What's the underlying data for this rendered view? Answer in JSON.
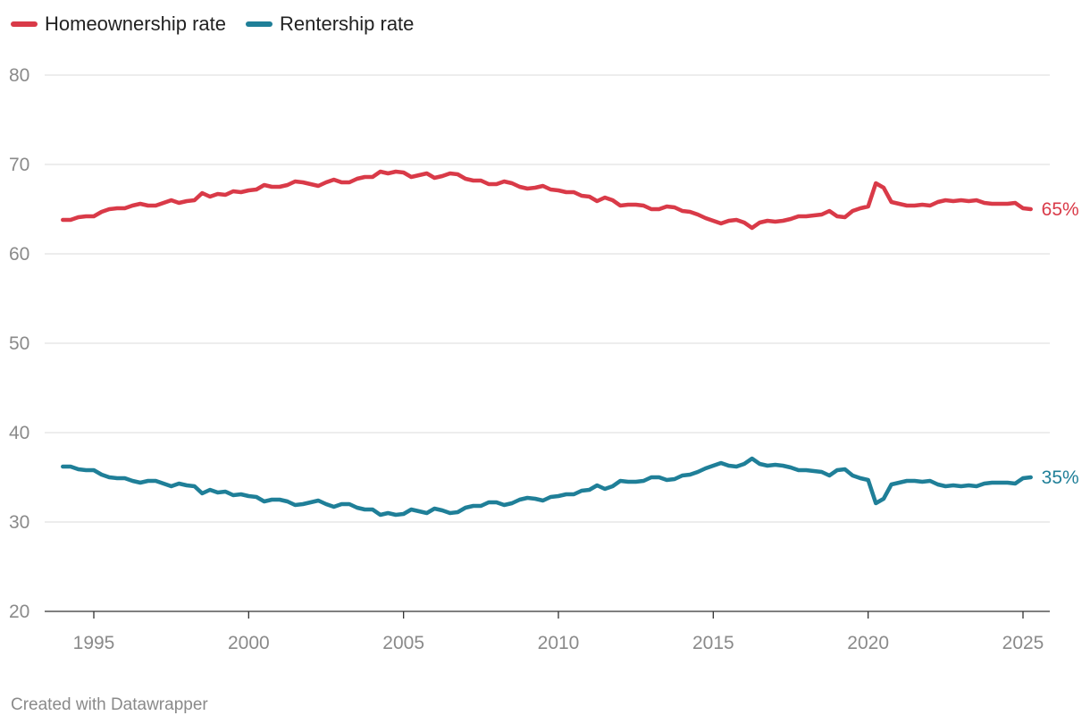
{
  "chart_data": {
    "type": "line",
    "title": "",
    "xlabel": "",
    "ylabel": "",
    "xlim": [
      1994.0,
      2025.5
    ],
    "ylim": [
      20,
      80
    ],
    "yticks": [
      20,
      30,
      40,
      50,
      60,
      70,
      80
    ],
    "xticks": [
      1995,
      2000,
      2005,
      2010,
      2015,
      2020,
      2025
    ],
    "legend_position": "top-left",
    "series": [
      {
        "name": "Homeownership rate",
        "color": "#d93a48",
        "end_label": "65%",
        "x": [
          1994.0,
          1994.25,
          1994.5,
          1994.75,
          1995.0,
          1995.25,
          1995.5,
          1995.75,
          1996.0,
          1996.25,
          1996.5,
          1996.75,
          1997.0,
          1997.25,
          1997.5,
          1997.75,
          1998.0,
          1998.25,
          1998.5,
          1998.75,
          1999.0,
          1999.25,
          1999.5,
          1999.75,
          2000.0,
          2000.25,
          2000.5,
          2000.75,
          2001.0,
          2001.25,
          2001.5,
          2001.75,
          2002.0,
          2002.25,
          2002.5,
          2002.75,
          2003.0,
          2003.25,
          2003.5,
          2003.75,
          2004.0,
          2004.25,
          2004.5,
          2004.75,
          2005.0,
          2005.25,
          2005.5,
          2005.75,
          2006.0,
          2006.25,
          2006.5,
          2006.75,
          2007.0,
          2007.25,
          2007.5,
          2007.75,
          2008.0,
          2008.25,
          2008.5,
          2008.75,
          2009.0,
          2009.25,
          2009.5,
          2009.75,
          2010.0,
          2010.25,
          2010.5,
          2010.75,
          2011.0,
          2011.25,
          2011.5,
          2011.75,
          2012.0,
          2012.25,
          2012.5,
          2012.75,
          2013.0,
          2013.25,
          2013.5,
          2013.75,
          2014.0,
          2014.25,
          2014.5,
          2014.75,
          2015.0,
          2015.25,
          2015.5,
          2015.75,
          2016.0,
          2016.25,
          2016.5,
          2016.75,
          2017.0,
          2017.25,
          2017.5,
          2017.75,
          2018.0,
          2018.25,
          2018.5,
          2018.75,
          2019.0,
          2019.25,
          2019.5,
          2019.75,
          2020.0,
          2020.25,
          2020.5,
          2020.75,
          2021.0,
          2021.25,
          2021.5,
          2021.75,
          2022.0,
          2022.25,
          2022.5,
          2022.75,
          2023.0,
          2023.25,
          2023.5,
          2023.75,
          2024.0,
          2024.25,
          2024.5,
          2024.75,
          2025.0,
          2025.25
        ],
        "values": [
          63.8,
          63.8,
          64.1,
          64.2,
          64.2,
          64.7,
          65.0,
          65.1,
          65.1,
          65.4,
          65.6,
          65.4,
          65.4,
          65.7,
          66.0,
          65.7,
          65.9,
          66.0,
          66.8,
          66.4,
          66.7,
          66.6,
          67.0,
          66.9,
          67.1,
          67.2,
          67.7,
          67.5,
          67.5,
          67.7,
          68.1,
          68.0,
          67.8,
          67.6,
          68.0,
          68.3,
          68.0,
          68.0,
          68.4,
          68.6,
          68.6,
          69.2,
          69.0,
          69.2,
          69.1,
          68.6,
          68.8,
          69.0,
          68.5,
          68.7,
          69.0,
          68.9,
          68.4,
          68.2,
          68.2,
          67.8,
          67.8,
          68.1,
          67.9,
          67.5,
          67.3,
          67.4,
          67.6,
          67.2,
          67.1,
          66.9,
          66.9,
          66.5,
          66.4,
          65.9,
          66.3,
          66.0,
          65.4,
          65.5,
          65.5,
          65.4,
          65.0,
          65.0,
          65.3,
          65.2,
          64.8,
          64.7,
          64.4,
          64.0,
          63.7,
          63.4,
          63.7,
          63.8,
          63.5,
          62.9,
          63.5,
          63.7,
          63.6,
          63.7,
          63.9,
          64.2,
          64.2,
          64.3,
          64.4,
          64.8,
          64.2,
          64.1,
          64.8,
          65.1,
          65.3,
          67.9,
          67.4,
          65.8,
          65.6,
          65.4,
          65.4,
          65.5,
          65.4,
          65.8,
          66.0,
          65.9,
          66.0,
          65.9,
          66.0,
          65.7,
          65.6,
          65.6,
          65.6,
          65.7,
          65.1,
          65.0
        ]
      },
      {
        "name": "Rentership rate",
        "color": "#1f7f98",
        "end_label": "35%",
        "x": [
          1994.0,
          1994.25,
          1994.5,
          1994.75,
          1995.0,
          1995.25,
          1995.5,
          1995.75,
          1996.0,
          1996.25,
          1996.5,
          1996.75,
          1997.0,
          1997.25,
          1997.5,
          1997.75,
          1998.0,
          1998.25,
          1998.5,
          1998.75,
          1999.0,
          1999.25,
          1999.5,
          1999.75,
          2000.0,
          2000.25,
          2000.5,
          2000.75,
          2001.0,
          2001.25,
          2001.5,
          2001.75,
          2002.0,
          2002.25,
          2002.5,
          2002.75,
          2003.0,
          2003.25,
          2003.5,
          2003.75,
          2004.0,
          2004.25,
          2004.5,
          2004.75,
          2005.0,
          2005.25,
          2005.5,
          2005.75,
          2006.0,
          2006.25,
          2006.5,
          2006.75,
          2007.0,
          2007.25,
          2007.5,
          2007.75,
          2008.0,
          2008.25,
          2008.5,
          2008.75,
          2009.0,
          2009.25,
          2009.5,
          2009.75,
          2010.0,
          2010.25,
          2010.5,
          2010.75,
          2011.0,
          2011.25,
          2011.5,
          2011.75,
          2012.0,
          2012.25,
          2012.5,
          2012.75,
          2013.0,
          2013.25,
          2013.5,
          2013.75,
          2014.0,
          2014.25,
          2014.5,
          2014.75,
          2015.0,
          2015.25,
          2015.5,
          2015.75,
          2016.0,
          2016.25,
          2016.5,
          2016.75,
          2017.0,
          2017.25,
          2017.5,
          2017.75,
          2018.0,
          2018.25,
          2018.5,
          2018.75,
          2019.0,
          2019.25,
          2019.5,
          2019.75,
          2020.0,
          2020.25,
          2020.5,
          2020.75,
          2021.0,
          2021.25,
          2021.5,
          2021.75,
          2022.0,
          2022.25,
          2022.5,
          2022.75,
          2023.0,
          2023.25,
          2023.5,
          2023.75,
          2024.0,
          2024.25,
          2024.5,
          2024.75,
          2025.0,
          2025.25
        ],
        "values": [
          36.2,
          36.2,
          35.9,
          35.8,
          35.8,
          35.3,
          35.0,
          34.9,
          34.9,
          34.6,
          34.4,
          34.6,
          34.6,
          34.3,
          34.0,
          34.3,
          34.1,
          34.0,
          33.2,
          33.6,
          33.3,
          33.4,
          33.0,
          33.1,
          32.9,
          32.8,
          32.3,
          32.5,
          32.5,
          32.3,
          31.9,
          32.0,
          32.2,
          32.4,
          32.0,
          31.7,
          32.0,
          32.0,
          31.6,
          31.4,
          31.4,
          30.8,
          31.0,
          30.8,
          30.9,
          31.4,
          31.2,
          31.0,
          31.5,
          31.3,
          31.0,
          31.1,
          31.6,
          31.8,
          31.8,
          32.2,
          32.2,
          31.9,
          32.1,
          32.5,
          32.7,
          32.6,
          32.4,
          32.8,
          32.9,
          33.1,
          33.1,
          33.5,
          33.6,
          34.1,
          33.7,
          34.0,
          34.6,
          34.5,
          34.5,
          34.6,
          35.0,
          35.0,
          34.7,
          34.8,
          35.2,
          35.3,
          35.6,
          36.0,
          36.3,
          36.6,
          36.3,
          36.2,
          36.5,
          37.1,
          36.5,
          36.3,
          36.4,
          36.3,
          36.1,
          35.8,
          35.8,
          35.7,
          35.6,
          35.2,
          35.8,
          35.9,
          35.2,
          34.9,
          34.7,
          32.1,
          32.6,
          34.2,
          34.4,
          34.6,
          34.6,
          34.5,
          34.6,
          34.2,
          34.0,
          34.1,
          34.0,
          34.1,
          34.0,
          34.3,
          34.4,
          34.4,
          34.4,
          34.3,
          34.9,
          35.0
        ]
      }
    ]
  },
  "footer": {
    "credit": "Created with Datawrapper"
  }
}
